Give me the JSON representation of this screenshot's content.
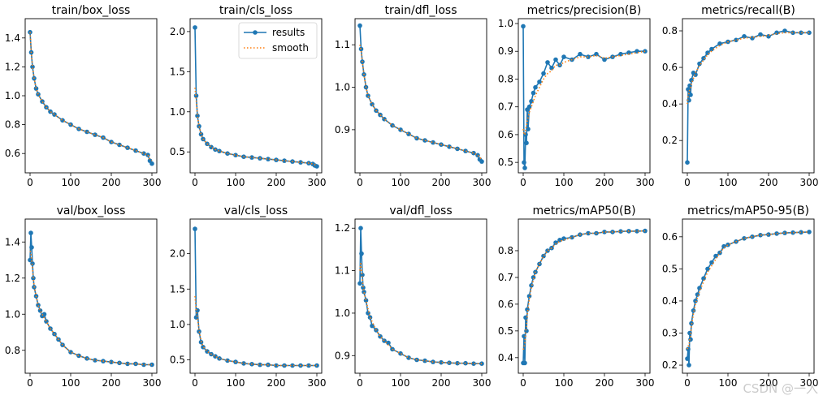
{
  "watermark": "CSDN @一入",
  "colors": {
    "results": "#1f77b4",
    "smooth": "#ff7f0e",
    "axis": "#000000"
  },
  "legend": {
    "results": "results",
    "smooth": "smooth",
    "placement": "top-right",
    "panel": 1
  },
  "chart_data": [
    {
      "type": "line",
      "title": "train/box_loss",
      "xlim": [
        0,
        300
      ],
      "ylim": [
        0.5,
        1.5
      ],
      "xticks": [
        0,
        100,
        200,
        300
      ],
      "yticks": [
        0.6,
        0.8,
        1.0,
        1.2,
        1.4
      ],
      "x": [
        0,
        3,
        6,
        10,
        15,
        20,
        30,
        40,
        50,
        60,
        80,
        100,
        120,
        140,
        160,
        180,
        200,
        220,
        240,
        260,
        280,
        290,
        295,
        300
      ],
      "series": [
        {
          "name": "results",
          "values": [
            1.44,
            1.3,
            1.2,
            1.12,
            1.05,
            1.01,
            0.96,
            0.92,
            0.89,
            0.87,
            0.83,
            0.8,
            0.77,
            0.75,
            0.73,
            0.71,
            0.68,
            0.66,
            0.64,
            0.62,
            0.6,
            0.59,
            0.55,
            0.53
          ]
        },
        {
          "name": "smooth",
          "values": [
            1.44,
            1.3,
            1.2,
            1.12,
            1.05,
            1.01,
            0.96,
            0.92,
            0.89,
            0.87,
            0.83,
            0.8,
            0.77,
            0.75,
            0.73,
            0.71,
            0.68,
            0.66,
            0.64,
            0.62,
            0.6,
            0.59,
            0.56,
            0.55
          ]
        }
      ]
    },
    {
      "type": "line",
      "title": "train/cls_loss",
      "xlim": [
        0,
        300
      ],
      "ylim": [
        0.3,
        2.1
      ],
      "xticks": [
        0,
        100,
        200,
        300
      ],
      "yticks": [
        0.5,
        1.0,
        1.5,
        2.0
      ],
      "x": [
        0,
        3,
        6,
        10,
        15,
        20,
        30,
        40,
        50,
        60,
        80,
        100,
        120,
        140,
        160,
        180,
        200,
        220,
        240,
        260,
        280,
        290,
        295,
        300
      ],
      "series": [
        {
          "name": "results",
          "values": [
            2.05,
            1.2,
            0.95,
            0.82,
            0.72,
            0.66,
            0.6,
            0.56,
            0.53,
            0.51,
            0.48,
            0.46,
            0.44,
            0.43,
            0.42,
            0.41,
            0.4,
            0.39,
            0.38,
            0.37,
            0.36,
            0.35,
            0.33,
            0.32
          ]
        },
        {
          "name": "smooth",
          "values": [
            1.3,
            1.15,
            0.95,
            0.82,
            0.72,
            0.66,
            0.6,
            0.56,
            0.53,
            0.51,
            0.48,
            0.46,
            0.44,
            0.43,
            0.42,
            0.41,
            0.4,
            0.39,
            0.38,
            0.37,
            0.36,
            0.35,
            0.34,
            0.33
          ]
        }
      ]
    },
    {
      "type": "line",
      "title": "train/dfl_loss",
      "xlim": [
        0,
        300
      ],
      "ylim": [
        0.81,
        1.15
      ],
      "xticks": [
        0,
        100,
        200,
        300
      ],
      "yticks": [
        0.9,
        1.0,
        1.1
      ],
      "x": [
        0,
        3,
        6,
        10,
        15,
        20,
        30,
        40,
        50,
        60,
        80,
        100,
        120,
        140,
        160,
        180,
        200,
        220,
        240,
        260,
        280,
        290,
        295,
        300
      ],
      "series": [
        {
          "name": "results",
          "values": [
            1.145,
            1.09,
            1.06,
            1.03,
            1.0,
            0.98,
            0.96,
            0.945,
            0.935,
            0.925,
            0.91,
            0.9,
            0.89,
            0.88,
            0.875,
            0.87,
            0.865,
            0.86,
            0.855,
            0.85,
            0.845,
            0.84,
            0.83,
            0.825
          ]
        },
        {
          "name": "smooth",
          "values": [
            1.1,
            1.085,
            1.06,
            1.03,
            1.0,
            0.98,
            0.96,
            0.945,
            0.935,
            0.925,
            0.91,
            0.9,
            0.89,
            0.88,
            0.875,
            0.87,
            0.865,
            0.86,
            0.855,
            0.85,
            0.845,
            0.84,
            0.835,
            0.83
          ]
        }
      ]
    },
    {
      "type": "line",
      "title": "metrics/precision(B)",
      "xlim": [
        0,
        300
      ],
      "ylim": [
        0.48,
        1.0
      ],
      "xticks": [
        0,
        100,
        200,
        300
      ],
      "yticks": [
        0.5,
        0.6,
        0.7,
        0.8,
        0.9,
        1.0
      ],
      "x": [
        0,
        2,
        4,
        6,
        8,
        10,
        12,
        15,
        20,
        25,
        30,
        40,
        50,
        60,
        70,
        80,
        90,
        100,
        120,
        140,
        160,
        180,
        200,
        220,
        240,
        260,
        280,
        300
      ],
      "series": [
        {
          "name": "results",
          "values": [
            0.99,
            0.5,
            0.48,
            0.6,
            0.57,
            0.69,
            0.62,
            0.7,
            0.72,
            0.75,
            0.77,
            0.79,
            0.82,
            0.86,
            0.84,
            0.87,
            0.85,
            0.88,
            0.87,
            0.89,
            0.88,
            0.89,
            0.87,
            0.88,
            0.89,
            0.895,
            0.9,
            0.9
          ]
        },
        {
          "name": "smooth",
          "values": [
            0.62,
            0.6,
            0.6,
            0.62,
            0.63,
            0.65,
            0.66,
            0.68,
            0.7,
            0.72,
            0.74,
            0.77,
            0.8,
            0.82,
            0.83,
            0.85,
            0.85,
            0.86,
            0.87,
            0.88,
            0.88,
            0.885,
            0.875,
            0.88,
            0.885,
            0.89,
            0.895,
            0.9
          ]
        }
      ]
    },
    {
      "type": "line",
      "title": "metrics/recall(B)",
      "xlim": [
        0,
        300
      ],
      "ylim": [
        0.05,
        0.84
      ],
      "xticks": [
        0,
        100,
        200,
        300
      ],
      "yticks": [
        0.2,
        0.4,
        0.6,
        0.8
      ],
      "x": [
        0,
        2,
        4,
        6,
        8,
        10,
        15,
        20,
        30,
        40,
        50,
        60,
        80,
        100,
        120,
        140,
        160,
        180,
        200,
        220,
        240,
        260,
        280,
        300
      ],
      "series": [
        {
          "name": "results",
          "values": [
            0.08,
            0.48,
            0.42,
            0.5,
            0.45,
            0.53,
            0.57,
            0.56,
            0.62,
            0.65,
            0.68,
            0.7,
            0.73,
            0.74,
            0.75,
            0.77,
            0.76,
            0.78,
            0.77,
            0.79,
            0.8,
            0.79,
            0.79,
            0.79
          ]
        },
        {
          "name": "smooth",
          "values": [
            0.4,
            0.44,
            0.46,
            0.48,
            0.49,
            0.51,
            0.54,
            0.57,
            0.61,
            0.64,
            0.67,
            0.69,
            0.72,
            0.74,
            0.75,
            0.76,
            0.765,
            0.77,
            0.775,
            0.785,
            0.79,
            0.79,
            0.79,
            0.79
          ]
        }
      ]
    },
    {
      "type": "line",
      "title": "val/box_loss",
      "xlim": [
        0,
        300
      ],
      "ylim": [
        0.7,
        1.5
      ],
      "xticks": [
        0,
        100,
        200,
        300
      ],
      "yticks": [
        0.8,
        1.0,
        1.2,
        1.4
      ],
      "x": [
        0,
        2,
        4,
        6,
        8,
        10,
        15,
        20,
        25,
        30,
        35,
        40,
        50,
        60,
        70,
        80,
        100,
        120,
        140,
        160,
        180,
        200,
        220,
        240,
        260,
        280,
        300
      ],
      "series": [
        {
          "name": "results",
          "values": [
            1.3,
            1.45,
            1.37,
            1.28,
            1.2,
            1.15,
            1.1,
            1.05,
            1.02,
            0.99,
            1.0,
            0.96,
            0.92,
            0.89,
            0.86,
            0.83,
            0.79,
            0.77,
            0.755,
            0.745,
            0.74,
            0.735,
            0.73,
            0.725,
            0.725,
            0.72,
            0.72
          ]
        },
        {
          "name": "smooth",
          "values": [
            1.35,
            1.34,
            1.3,
            1.25,
            1.2,
            1.16,
            1.1,
            1.05,
            1.02,
            1.0,
            0.98,
            0.96,
            0.92,
            0.89,
            0.86,
            0.83,
            0.79,
            0.77,
            0.755,
            0.745,
            0.74,
            0.735,
            0.73,
            0.725,
            0.725,
            0.72,
            0.72
          ]
        }
      ]
    },
    {
      "type": "line",
      "title": "val/cls_loss",
      "xlim": [
        0,
        300
      ],
      "ylim": [
        0.38,
        2.42
      ],
      "xticks": [
        0,
        100,
        200,
        300
      ],
      "yticks": [
        0.5,
        1.0,
        1.5,
        2.0
      ],
      "x": [
        0,
        3,
        6,
        10,
        15,
        20,
        30,
        40,
        50,
        60,
        80,
        100,
        120,
        140,
        160,
        180,
        200,
        220,
        240,
        260,
        280,
        300
      ],
      "series": [
        {
          "name": "results",
          "values": [
            2.35,
            1.1,
            1.2,
            0.9,
            0.75,
            0.68,
            0.62,
            0.58,
            0.55,
            0.52,
            0.49,
            0.47,
            0.45,
            0.44,
            0.43,
            0.43,
            0.42,
            0.42,
            0.42,
            0.42,
            0.42,
            0.42
          ]
        },
        {
          "name": "smooth",
          "values": [
            1.4,
            1.2,
            1.1,
            0.92,
            0.77,
            0.69,
            0.62,
            0.58,
            0.55,
            0.52,
            0.49,
            0.47,
            0.45,
            0.44,
            0.43,
            0.43,
            0.42,
            0.42,
            0.42,
            0.42,
            0.42,
            0.42
          ]
        }
      ]
    },
    {
      "type": "line",
      "title": "val/dfl_loss",
      "xlim": [
        0,
        300
      ],
      "ylim": [
        0.87,
        1.21
      ],
      "xticks": [
        0,
        100,
        200,
        300
      ],
      "yticks": [
        0.9,
        1.0,
        1.1,
        1.2
      ],
      "x": [
        0,
        2,
        4,
        6,
        8,
        10,
        15,
        20,
        25,
        30,
        40,
        50,
        60,
        70,
        80,
        100,
        120,
        140,
        160,
        180,
        200,
        220,
        240,
        260,
        280,
        300
      ],
      "series": [
        {
          "name": "results",
          "values": [
            1.07,
            1.2,
            1.14,
            1.09,
            1.06,
            1.05,
            1.03,
            1.0,
            0.99,
            0.97,
            0.96,
            0.945,
            0.935,
            0.93,
            0.915,
            0.905,
            0.895,
            0.89,
            0.888,
            0.885,
            0.884,
            0.883,
            0.882,
            0.882,
            0.881,
            0.881
          ]
        },
        {
          "name": "smooth",
          "values": [
            1.1,
            1.12,
            1.1,
            1.08,
            1.06,
            1.05,
            1.03,
            1.01,
            0.99,
            0.98,
            0.96,
            0.945,
            0.935,
            0.925,
            0.915,
            0.905,
            0.895,
            0.89,
            0.888,
            0.885,
            0.884,
            0.883,
            0.882,
            0.882,
            0.881,
            0.881
          ]
        }
      ]
    },
    {
      "type": "line",
      "title": "metrics/mAP50(B)",
      "xlim": [
        0,
        300
      ],
      "ylim": [
        0.36,
        0.9
      ],
      "xticks": [
        0,
        100,
        200,
        300
      ],
      "yticks": [
        0.4,
        0.5,
        0.6,
        0.7,
        0.8
      ],
      "x": [
        0,
        2,
        4,
        6,
        8,
        10,
        15,
        20,
        25,
        30,
        40,
        50,
        60,
        70,
        80,
        90,
        100,
        120,
        140,
        160,
        180,
        200,
        220,
        240,
        260,
        280,
        300
      ],
      "series": [
        {
          "name": "results",
          "values": [
            0.38,
            0.48,
            0.38,
            0.55,
            0.5,
            0.58,
            0.63,
            0.67,
            0.7,
            0.72,
            0.75,
            0.78,
            0.8,
            0.81,
            0.83,
            0.84,
            0.845,
            0.85,
            0.86,
            0.865,
            0.865,
            0.87,
            0.87,
            0.872,
            0.873,
            0.873,
            0.874
          ]
        },
        {
          "name": "smooth",
          "values": [
            0.43,
            0.44,
            0.45,
            0.5,
            0.52,
            0.56,
            0.62,
            0.66,
            0.69,
            0.72,
            0.75,
            0.78,
            0.8,
            0.81,
            0.825,
            0.835,
            0.84,
            0.85,
            0.86,
            0.865,
            0.865,
            0.87,
            0.87,
            0.872,
            0.873,
            0.873,
            0.874
          ]
        }
      ]
    },
    {
      "type": "line",
      "title": "metrics/mAP50-95(B)",
      "xlim": [
        0,
        300
      ],
      "ylim": [
        0.19,
        0.64
      ],
      "xticks": [
        0,
        100,
        200,
        300
      ],
      "yticks": [
        0.2,
        0.3,
        0.4,
        0.5,
        0.6
      ],
      "x": [
        0,
        2,
        4,
        6,
        8,
        10,
        15,
        20,
        25,
        30,
        40,
        50,
        60,
        70,
        80,
        90,
        100,
        120,
        140,
        160,
        180,
        200,
        220,
        240,
        260,
        280,
        300
      ],
      "series": [
        {
          "name": "results",
          "values": [
            0.22,
            0.25,
            0.2,
            0.3,
            0.28,
            0.33,
            0.37,
            0.4,
            0.42,
            0.44,
            0.47,
            0.5,
            0.52,
            0.54,
            0.55,
            0.57,
            0.575,
            0.585,
            0.595,
            0.6,
            0.605,
            0.607,
            0.61,
            0.612,
            0.613,
            0.614,
            0.615
          ]
        },
        {
          "name": "smooth",
          "values": [
            0.25,
            0.26,
            0.26,
            0.28,
            0.29,
            0.32,
            0.36,
            0.39,
            0.41,
            0.43,
            0.46,
            0.49,
            0.51,
            0.53,
            0.55,
            0.565,
            0.575,
            0.585,
            0.595,
            0.6,
            0.605,
            0.607,
            0.61,
            0.612,
            0.613,
            0.614,
            0.615
          ]
        }
      ]
    }
  ]
}
